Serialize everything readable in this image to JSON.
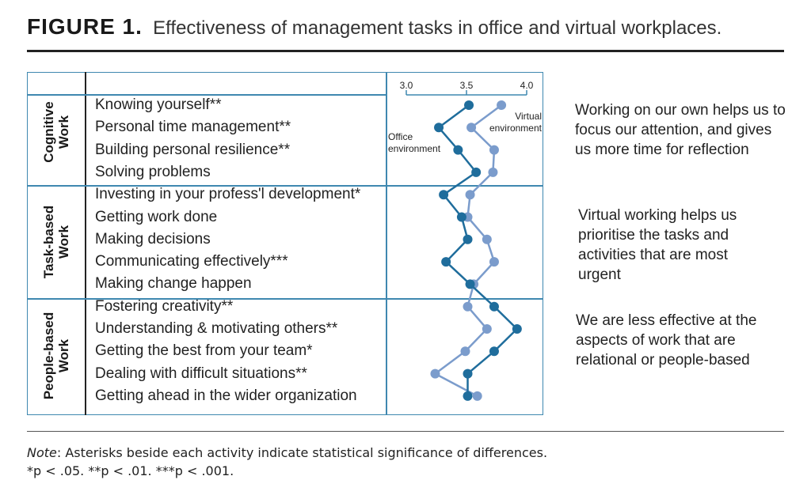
{
  "figure": {
    "label": "FIGURE 1.",
    "caption": "Effectiveness of management tasks in office and virtual workplaces."
  },
  "groups": [
    {
      "line1": "Cognitive",
      "line2": "Work"
    },
    {
      "line1": "Task-based",
      "line2": "Work"
    },
    {
      "line1": "People-based",
      "line2": "Work"
    }
  ],
  "side_notes": [
    "Working on our own helps us to focus our attention, and gives us more time for reflection",
    "Virtual working helps us prioritise the tasks and activities that are most urgent",
    "We are less effective at the aspects of work that are relational or people-based"
  ],
  "note": {
    "label": "Note",
    "line1": ": Asterisks beside each activity indicate statistical significance of differences.",
    "line2": "*p < .05. **p < .01. ***p < .001."
  },
  "chart_data": {
    "type": "line",
    "orientation": "horizontal-values",
    "categories": [
      "Knowing yourself**",
      "Personal time management**",
      "Building personal resilience**",
      "Solving problems",
      "Investing in your profess'l development*",
      "Getting work done",
      "Making decisions",
      "Communicating effectively***",
      "Making change happen",
      "Fostering creativity**",
      "Understanding & motivating others**",
      "Getting the best from your team*",
      "Dealing with difficult situations**",
      "Getting ahead in the wider organization"
    ],
    "series": [
      {
        "name": "Office environment",
        "color": "#1f6d9c",
        "values": [
          3.52,
          3.27,
          3.43,
          3.58,
          3.31,
          3.46,
          3.51,
          3.33,
          3.53,
          3.73,
          3.92,
          3.73,
          3.51,
          3.51
        ]
      },
      {
        "name": "Virtual environment",
        "color": "#7b9ccc",
        "values": [
          3.79,
          3.54,
          3.73,
          3.72,
          3.53,
          3.51,
          3.67,
          3.73,
          3.56,
          3.51,
          3.67,
          3.49,
          3.24,
          3.59
        ]
      }
    ],
    "series_labels": [
      {
        "line1": "Office",
        "line2": "environment"
      },
      {
        "line1": "Virtual",
        "line2": "environment"
      }
    ],
    "xlim": [
      3.0,
      4.0
    ],
    "ticks": [
      "3.0",
      "3.5",
      "4.0"
    ],
    "tick_values": [
      3.0,
      3.5,
      4.0
    ],
    "grid": false
  }
}
